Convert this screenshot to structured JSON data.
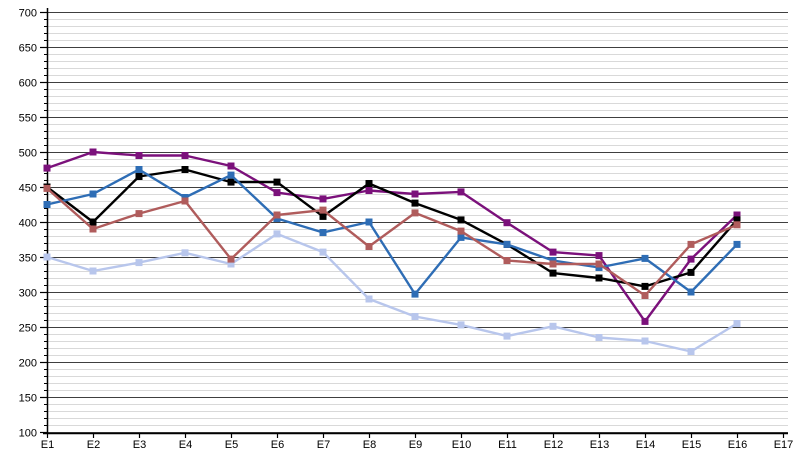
{
  "chart_data": {
    "type": "line",
    "title": "",
    "xlabel": "",
    "ylabel": "",
    "legend_position": "none",
    "grid": {
      "major_on": true,
      "minor_on": true,
      "major_color": "#3f3f3f",
      "minor_color": "#d9d9d9",
      "background": "#ffffff",
      "axis_color": "#000000"
    },
    "categories": [
      "E1",
      "E2",
      "E3",
      "E4",
      "E5",
      "E6",
      "E7",
      "E8",
      "E9",
      "E10",
      "E11",
      "E12",
      "E13",
      "E14",
      "E15",
      "E16",
      "E17"
    ],
    "y_axis": {
      "min": 100,
      "max": 700,
      "major_tick_interval": 50,
      "minor_tick_interval": 10,
      "tick_labels": [
        700,
        650,
        600,
        550,
        500,
        450,
        400,
        350,
        300,
        250,
        200,
        150,
        100
      ]
    },
    "series": [
      {
        "name": "light-blue",
        "color": "#b8c6ec",
        "values": [
          350,
          330,
          342,
          356,
          340,
          383,
          357,
          290,
          265,
          253,
          237,
          251,
          235,
          230,
          215,
          255
        ]
      },
      {
        "name": "purple",
        "color": "#7b117b",
        "values": [
          477,
          500,
          495,
          495,
          480,
          442,
          433,
          445,
          440,
          443,
          399,
          357,
          352,
          258,
          347,
          410
        ]
      },
      {
        "name": "black",
        "color": "#000000",
        "values": [
          450,
          400,
          465,
          475,
          457,
          457,
          408,
          455,
          427,
          403,
          368,
          327,
          320,
          308,
          328,
          403
        ]
      },
      {
        "name": "blue",
        "color": "#2e6db5",
        "values": [
          425,
          440,
          475,
          435,
          467,
          405,
          385,
          400,
          297,
          378,
          368,
          345,
          335,
          348,
          300,
          368
        ]
      },
      {
        "name": "red-brown",
        "color": "#b05c5c",
        "values": [
          448,
          390,
          412,
          430,
          347,
          410,
          417,
          365,
          413,
          387,
          345,
          340,
          340,
          295,
          368,
          396
        ]
      }
    ]
  }
}
